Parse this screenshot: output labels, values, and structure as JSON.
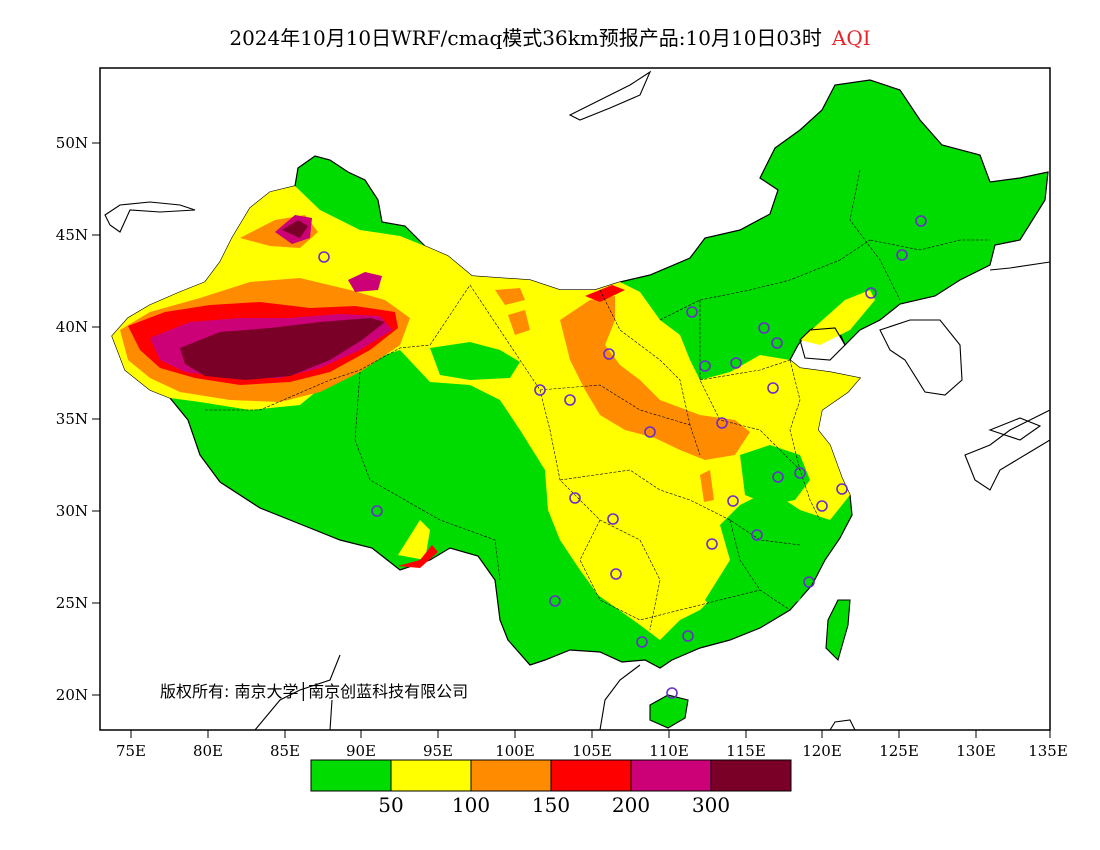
{
  "title": {
    "main": "2024年10月10日WRF/cmaq模式36km预报产品:10月10日03时",
    "variable": "AQI"
  },
  "map": {
    "lon_labels": [
      "75E",
      "80E",
      "85E",
      "90E",
      "95E",
      "100E",
      "105E",
      "110E",
      "115E",
      "120E",
      "125E",
      "130E",
      "135E"
    ],
    "lat_labels": [
      "50N",
      "45N",
      "40N",
      "35N",
      "30N",
      "25N",
      "20N"
    ],
    "copyright": "版权所有: 南京大学│南京创蓝科技有限公司"
  },
  "legend": {
    "colors": [
      "#00dc00",
      "#ffff00",
      "#ff8c00",
      "#ff0000",
      "#cc0077",
      "#7a0028"
    ],
    "ticks": [
      "50",
      "100",
      "150",
      "200",
      "300"
    ]
  }
}
